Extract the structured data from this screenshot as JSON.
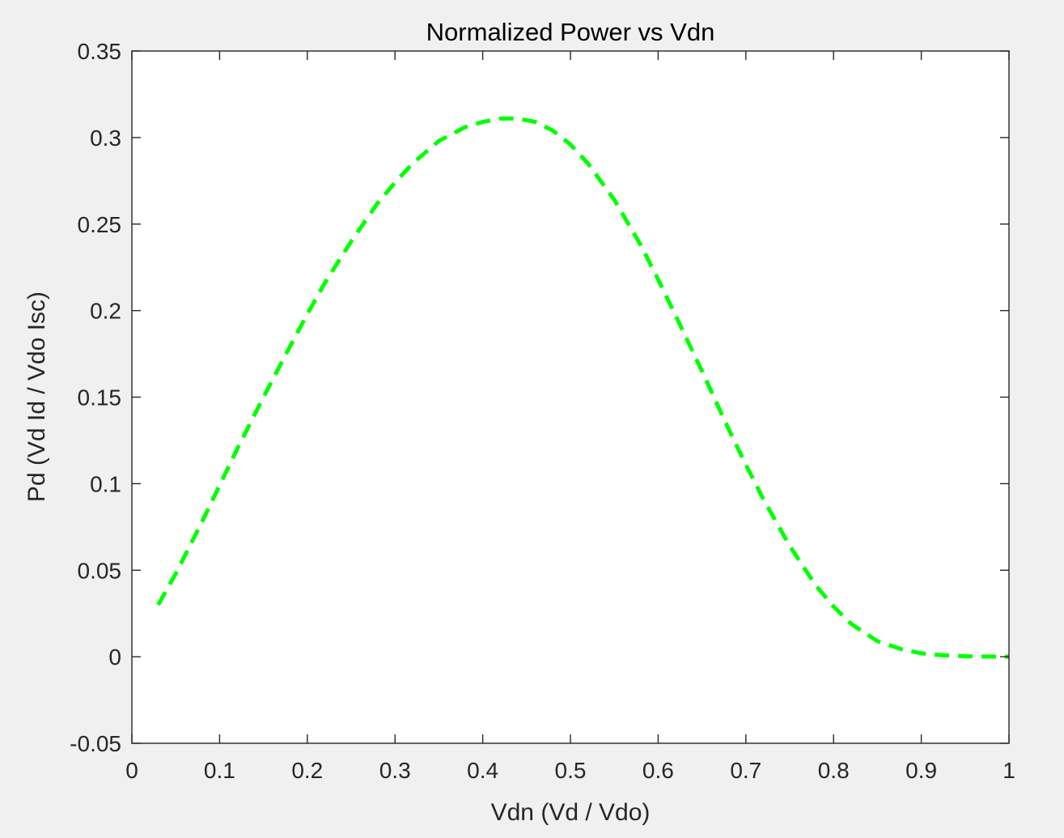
{
  "chart_data": {
    "type": "line",
    "title": "Normalized Power vs Vdn",
    "xlabel": "Vdn (Vd / Vdo)",
    "ylabel": "Pd (Vd Id / Vdo Isc)",
    "xlim": [
      0,
      1
    ],
    "ylim": [
      -0.05,
      0.35
    ],
    "xticks": [
      0,
      0.1,
      0.2,
      0.3,
      0.4,
      0.5,
      0.6,
      0.7,
      0.8,
      0.9,
      1
    ],
    "xtick_labels": [
      "0",
      "0.1",
      "0.2",
      "0.3",
      "0.4",
      "0.5",
      "0.6",
      "0.7",
      "0.8",
      "0.9",
      "1"
    ],
    "yticks": [
      -0.05,
      0,
      0.05,
      0.1,
      0.15,
      0.2,
      0.25,
      0.3,
      0.35
    ],
    "ytick_labels": [
      "-0.05",
      "0",
      "0.05",
      "0.1",
      "0.15",
      "0.2",
      "0.25",
      "0.3",
      "0.35"
    ],
    "grid": false,
    "box": true,
    "series": [
      {
        "color": "#00ff00",
        "line_style": "dashed",
        "x": [
          0.03,
          0.05,
          0.08,
          0.1,
          0.12,
          0.15,
          0.18,
          0.2,
          0.22,
          0.25,
          0.28,
          0.3,
          0.32,
          0.35,
          0.38,
          0.4,
          0.42,
          0.44,
          0.46,
          0.48,
          0.5,
          0.52,
          0.55,
          0.58,
          0.6,
          0.62,
          0.65,
          0.68,
          0.7,
          0.72,
          0.75,
          0.78,
          0.8,
          0.82,
          0.85,
          0.88,
          0.9,
          0.92,
          0.95,
          0.97,
          1.0
        ],
        "y": [
          0.03,
          0.048,
          0.078,
          0.099,
          0.12,
          0.15,
          0.179,
          0.198,
          0.216,
          0.24,
          0.262,
          0.274,
          0.285,
          0.298,
          0.306,
          0.309,
          0.311,
          0.311,
          0.309,
          0.304,
          0.296,
          0.285,
          0.264,
          0.238,
          0.218,
          0.197,
          0.165,
          0.132,
          0.111,
          0.091,
          0.064,
          0.041,
          0.029,
          0.019,
          0.009,
          0.004,
          0.002,
          0.001,
          0.0003,
          0.0001,
          0.0
        ]
      }
    ]
  }
}
